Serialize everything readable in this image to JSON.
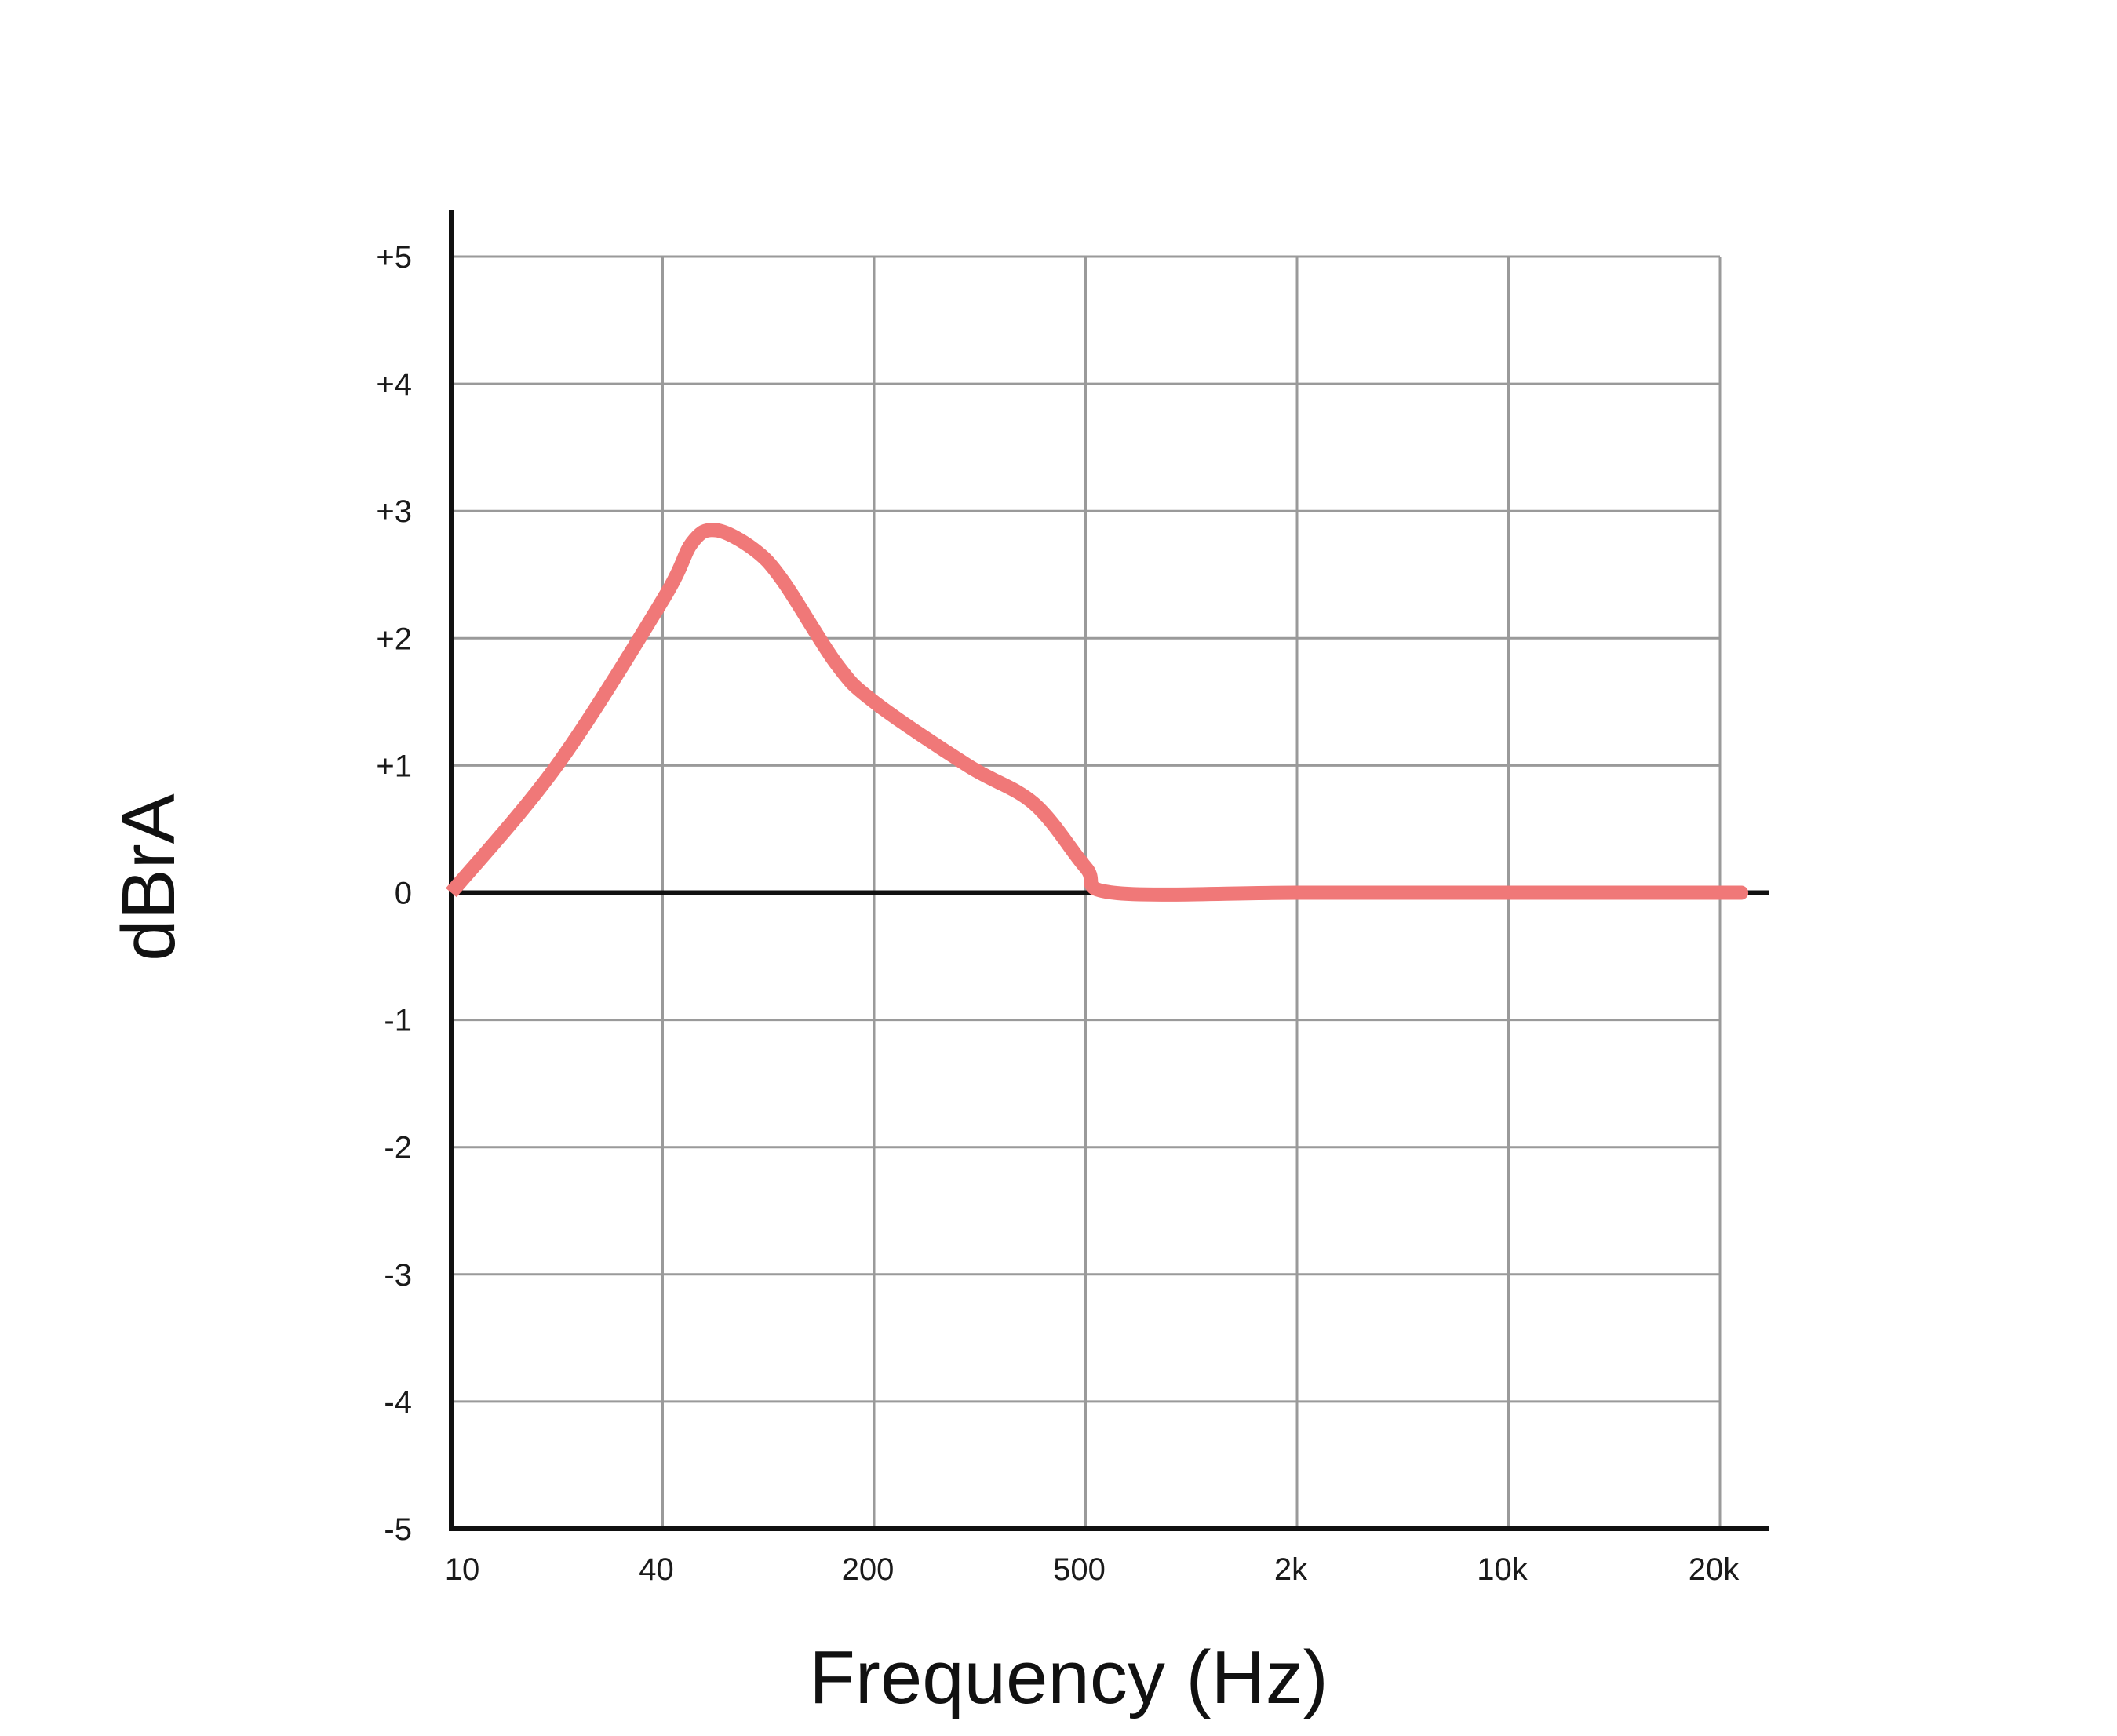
{
  "chart_data": {
    "type": "line",
    "title": "",
    "xlabel": "Frequency (Hz)",
    "ylabel": "dBrA",
    "x_ticks": [
      "10",
      "40",
      "200",
      "500",
      "2k",
      "10k",
      "20k"
    ],
    "y_ticks": [
      "+5",
      "+4",
      "+3",
      "+2",
      "+1",
      "0",
      "-1",
      "-2",
      "-3",
      "-4",
      "-5"
    ],
    "ylim": [
      -5,
      5
    ],
    "grid": true,
    "series": [
      {
        "color": "#F07878",
        "points": [
          {
            "x": "10",
            "y": 0
          },
          {
            "x": "20",
            "y": 1.0
          },
          {
            "x": "40",
            "y": 2.3
          },
          {
            "x": "50",
            "y": 2.75
          },
          {
            "x": "60",
            "y": 2.85
          },
          {
            "x": "80",
            "y": 2.7
          },
          {
            "x": "100",
            "y": 2.45
          },
          {
            "x": "150",
            "y": 1.8
          },
          {
            "x": "200",
            "y": 1.5
          },
          {
            "x": "300",
            "y": 1.0
          },
          {
            "x": "400",
            "y": 0.7
          },
          {
            "x": "500",
            "y": 0.2
          },
          {
            "x": "600",
            "y": 0
          },
          {
            "x": "2k",
            "y": 0
          },
          {
            "x": "10k",
            "y": 0
          },
          {
            "x": "20k",
            "y": 0
          }
        ]
      }
    ]
  },
  "colors": {
    "curve": "#F07878",
    "grid": "#9a9a9a",
    "axis": "#111111"
  }
}
